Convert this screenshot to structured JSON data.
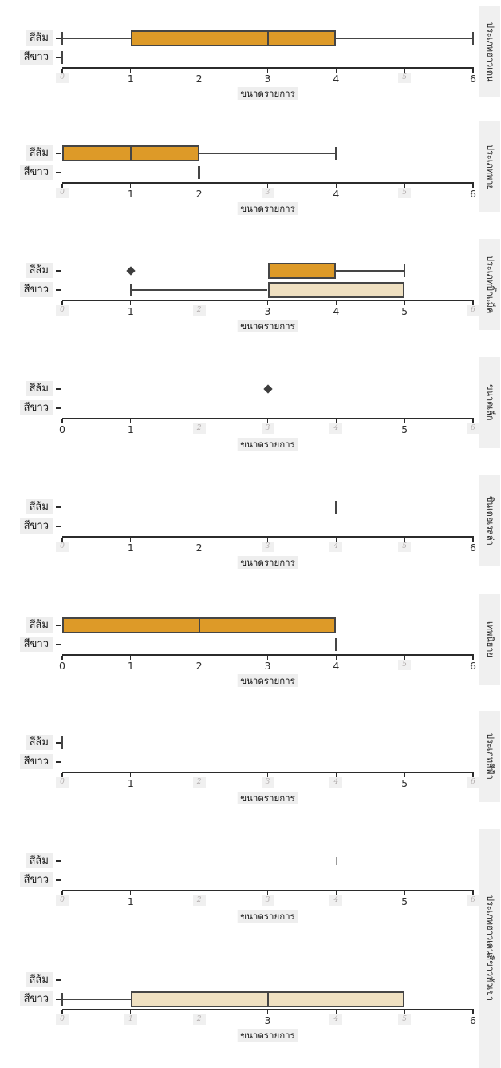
{
  "chart_data": {
    "type": "boxplot_grid",
    "description": "Nine vertically stacked horizontal box-plot facets comparing item size by color group for pumpkin varieties (Thai labels)",
    "xlabel": "ขนาดรายการ",
    "xticks": [
      0,
      1,
      2,
      3,
      4,
      5,
      6
    ],
    "xlim": [
      0,
      6
    ],
    "categories": [
      "สีส้ม",
      "สีขาว"
    ],
    "colors": {
      "orange_fill": "#DD9A28",
      "white_fill": "#EFE0C1",
      "box_edge": "#454545",
      "axis": "#2b2b2b",
      "outlier": "#3d3d3d",
      "ghost_text": "#b3aeae",
      "ghost_bg": "#f0f0f0",
      "label_bg": "#eeeeee",
      "strip_bg": "#f0f0f0",
      "faint_marker": "#9a9a9a"
    },
    "panels": [
      {
        "row_label": "ประเภทฮาวเดน",
        "orange": {
          "min": 0,
          "q1": 1,
          "median": 3,
          "q3": 4,
          "max": 6,
          "outliers": []
        },
        "white": {
          "value": 0
        },
        "ghost_ticks": [
          0,
          5
        ]
      },
      {
        "row_label": "ประเภทพาย",
        "orange": {
          "min": 0,
          "q1": 0,
          "median": 1,
          "q3": 2,
          "max": 4,
          "outliers": []
        },
        "white": {
          "value": 2
        },
        "ghost_ticks": [
          0,
          3,
          5
        ]
      },
      {
        "row_label": "ประเภทบิ๊กแม็ค",
        "orange": {
          "min": 3,
          "q1": 3,
          "median": 4,
          "q3": 4,
          "max": 5,
          "outliers": [
            1
          ]
        },
        "white": {
          "min": 1,
          "q1": 3,
          "median": 3,
          "q3": 5,
          "max": 5,
          "outliers": []
        },
        "ghost_ticks": [
          0,
          2,
          6
        ]
      },
      {
        "row_label": "ขนาดเล็ก",
        "orange": {
          "outliers": [
            3
          ]
        },
        "white": null,
        "ghost_ticks": [
          2,
          3,
          4,
          6
        ]
      },
      {
        "row_label": "ซินเดอเรลล่า",
        "orange": {
          "value": 4
        },
        "white": null,
        "ghost_ticks": [
          0,
          3,
          4,
          5
        ]
      },
      {
        "row_label": "เทพนิยาย",
        "orange": {
          "min": 0,
          "q1": 0,
          "median": 2,
          "q3": 4,
          "max": 4,
          "outliers": []
        },
        "white": {
          "value": 4
        },
        "ghost_ticks": [
          5
        ]
      },
      {
        "row_label": "ประเภทสีฟ้า",
        "orange": {
          "value": 0
        },
        "white": null,
        "ghost_ticks": [
          0,
          2,
          3,
          4,
          6
        ]
      },
      {
        "row_label": "",
        "orange": {
          "value": 4,
          "faint": true
        },
        "white": null,
        "ghost_ticks": [
          0,
          2,
          3,
          4,
          6
        ]
      },
      {
        "row_label": "ประเภทฮาวเดนสีขาวหัวเข่า",
        "orange": null,
        "white": {
          "min": 0,
          "q1": 1,
          "median": 3,
          "q3": 5,
          "max": 5,
          "outliers": []
        },
        "ghost_ticks": [
          0,
          1,
          2,
          4,
          5
        ]
      }
    ]
  }
}
